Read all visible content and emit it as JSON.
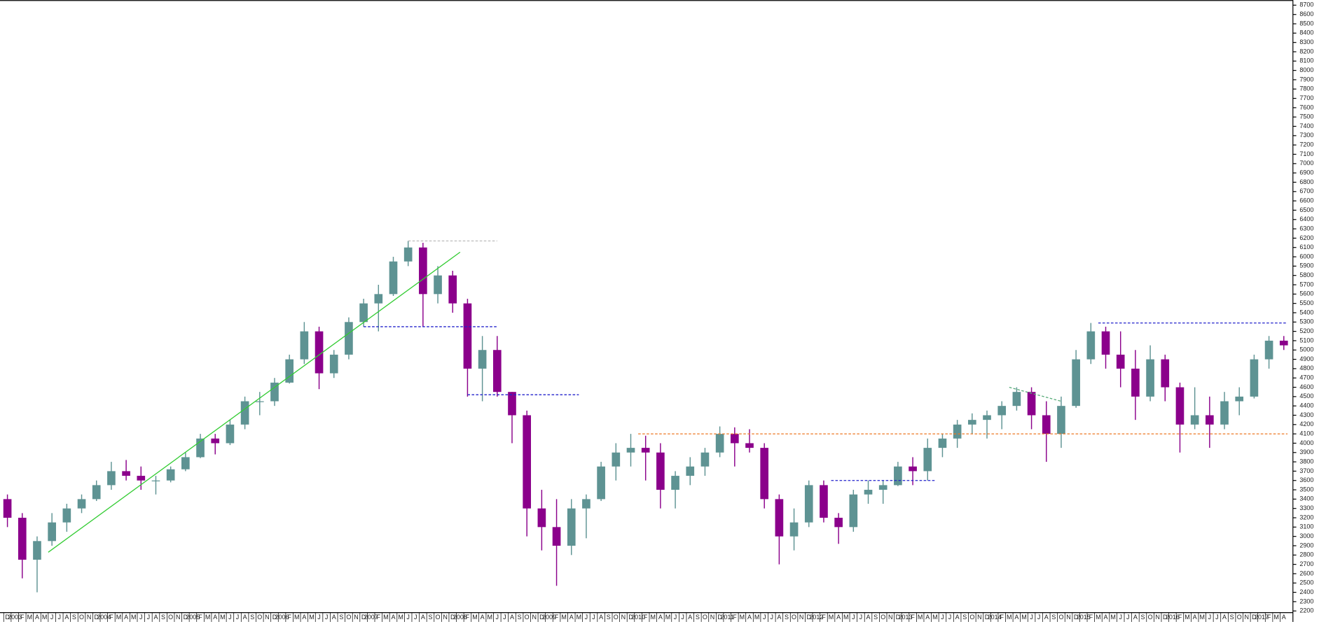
{
  "chart_data": {
    "type": "candlestick",
    "up_color": "#5e9393",
    "down_color": "#8b008b",
    "xlim": [
      -1,
      173
    ],
    "ylim": [
      2200,
      8700
    ],
    "yticks": [
      2200,
      2300,
      2400,
      2500,
      2600,
      2700,
      2800,
      2900,
      3000,
      3100,
      3200,
      3300,
      3400,
      3500,
      3600,
      3700,
      3800,
      3900,
      4000,
      4100,
      4200,
      4300,
      4400,
      4500,
      4600,
      4700,
      4800,
      4900,
      5000,
      5100,
      5200,
      5300,
      5400,
      5500,
      5600,
      5700,
      5800,
      5900,
      6000,
      6100,
      6200,
      6300,
      6400,
      6500,
      6600,
      6700,
      6800,
      6900,
      7000,
      7100,
      7200,
      7300,
      7400,
      7500,
      7600,
      7700,
      7800,
      7900,
      8000,
      8100,
      8200,
      8300,
      8400,
      8500,
      8600,
      8700
    ],
    "categories": [
      "D",
      "2003",
      "F",
      "M",
      "A",
      "M",
      "J",
      "J",
      "A",
      "S",
      "O",
      "N",
      "D",
      "2004",
      "F",
      "M",
      "A",
      "M",
      "J",
      "J",
      "A",
      "S",
      "O",
      "N",
      "D",
      "2005",
      "F",
      "M",
      "A",
      "M",
      "J",
      "J",
      "A",
      "S",
      "O",
      "N",
      "D",
      "2006",
      "F",
      "M",
      "A",
      "M",
      "J",
      "J",
      "A",
      "S",
      "O",
      "N",
      "D",
      "2007",
      "F",
      "M",
      "A",
      "M",
      "J",
      "J",
      "A",
      "S",
      "O",
      "N",
      "D",
      "2008",
      "F",
      "M",
      "A",
      "M",
      "J",
      "J",
      "A",
      "S",
      "O",
      "N",
      "D",
      "2009",
      "F",
      "M",
      "A",
      "M",
      "J",
      "J",
      "A",
      "S",
      "O",
      "N",
      "D",
      "2010",
      "F",
      "M",
      "A",
      "M",
      "J",
      "J",
      "A",
      "S",
      "O",
      "N",
      "D",
      "2011",
      "F",
      "M",
      "A",
      "M",
      "J",
      "J",
      "A",
      "S",
      "O",
      "N",
      "D",
      "2012",
      "F",
      "M",
      "A",
      "M",
      "J",
      "J",
      "A",
      "S",
      "O",
      "N",
      "D",
      "2013",
      "F",
      "M",
      "A",
      "M",
      "J",
      "J",
      "A",
      "S",
      "O",
      "N",
      "D",
      "2014",
      "F",
      "M",
      "A",
      "M",
      "J",
      "J",
      "A",
      "S",
      "O",
      "N",
      "D",
      "2015",
      "F",
      "M",
      "A",
      "M",
      "J",
      "J",
      "A",
      "S",
      "O",
      "N",
      "D",
      "2016",
      "F",
      "M",
      "A",
      "M",
      "J",
      "J",
      "A",
      "S",
      "O",
      "N",
      "D",
      "2017",
      "F",
      "M",
      "A"
    ],
    "x": [
      0,
      2,
      4,
      6,
      8,
      10,
      12,
      14,
      16,
      18,
      20,
      22,
      24,
      26,
      28,
      30,
      32,
      34,
      36,
      38,
      40,
      42,
      44,
      46,
      48,
      50,
      52,
      54,
      56,
      58,
      60,
      62,
      64,
      66,
      68,
      70,
      72,
      74,
      76,
      78,
      80,
      82,
      84,
      86,
      88,
      90,
      92,
      94,
      96,
      98,
      100,
      102,
      104,
      106,
      108,
      110,
      112,
      114,
      116,
      118,
      120,
      122,
      124,
      126,
      128,
      130,
      132,
      134,
      136,
      138,
      140,
      142,
      144,
      146,
      148,
      150,
      152,
      154,
      156,
      158,
      160,
      162,
      164,
      166,
      168,
      170,
      172
    ],
    "ohlc": [
      [
        3400,
        3450,
        3100,
        3200
      ],
      [
        3200,
        3250,
        2550,
        2750
      ],
      [
        2750,
        3000,
        2400,
        2950
      ],
      [
        2950,
        3250,
        2900,
        3150
      ],
      [
        3150,
        3350,
        3050,
        3300
      ],
      [
        3300,
        3450,
        3250,
        3400
      ],
      [
        3400,
        3600,
        3380,
        3550
      ],
      [
        3550,
        3800,
        3500,
        3700
      ],
      [
        3700,
        3820,
        3600,
        3650
      ],
      [
        3650,
        3750,
        3500,
        3600
      ],
      [
        3600,
        3650,
        3450,
        3600
      ],
      [
        3600,
        3750,
        3580,
        3720
      ],
      [
        3720,
        3900,
        3700,
        3850
      ],
      [
        3850,
        4100,
        3840,
        4050
      ],
      [
        4050,
        4100,
        3880,
        4000
      ],
      [
        4000,
        4250,
        3980,
        4200
      ],
      [
        4200,
        4500,
        4150,
        4450
      ],
      [
        4450,
        4550,
        4300,
        4450
      ],
      [
        4450,
        4700,
        4400,
        4650
      ],
      [
        4650,
        4950,
        4640,
        4900
      ],
      [
        4900,
        5300,
        4850,
        5200
      ],
      [
        5200,
        5250,
        4580,
        4750
      ],
      [
        4750,
        5000,
        4700,
        4950
      ],
      [
        4950,
        5350,
        4900,
        5300
      ],
      [
        5300,
        5550,
        5250,
        5500
      ],
      [
        5500,
        5700,
        5200,
        5600
      ],
      [
        5600,
        6000,
        5580,
        5950
      ],
      [
        5950,
        6170,
        5900,
        6100
      ],
      [
        6100,
        6150,
        5250,
        5600
      ],
      [
        5600,
        5900,
        5500,
        5800
      ],
      [
        5800,
        5850,
        5400,
        5500
      ],
      [
        5500,
        5550,
        4500,
        4800
      ],
      [
        4800,
        5150,
        4450,
        5000
      ],
      [
        5000,
        5150,
        4500,
        4550
      ],
      [
        4550,
        4550,
        4000,
        4300
      ],
      [
        4300,
        4350,
        3000,
        3300
      ],
      [
        3300,
        3500,
        2850,
        3100
      ],
      [
        3100,
        3400,
        2470,
        2900
      ],
      [
        2900,
        3400,
        2800,
        3300
      ],
      [
        3300,
        3450,
        2980,
        3400
      ],
      [
        3400,
        3800,
        3380,
        3750
      ],
      [
        3750,
        4000,
        3600,
        3900
      ],
      [
        3900,
        4100,
        3750,
        3950
      ],
      [
        3950,
        4080,
        3600,
        3900
      ],
      [
        3900,
        4000,
        3300,
        3500
      ],
      [
        3500,
        3700,
        3300,
        3650
      ],
      [
        3650,
        3850,
        3550,
        3750
      ],
      [
        3750,
        3950,
        3650,
        3900
      ],
      [
        3900,
        4180,
        3850,
        4100
      ],
      [
        4100,
        4170,
        3750,
        4000
      ],
      [
        4000,
        4150,
        3900,
        3950
      ],
      [
        3950,
        4000,
        3300,
        3400
      ],
      [
        3400,
        3450,
        2700,
        3000
      ],
      [
        3000,
        3300,
        2850,
        3150
      ],
      [
        3150,
        3600,
        3100,
        3550
      ],
      [
        3550,
        3600,
        3150,
        3200
      ],
      [
        3200,
        3250,
        2920,
        3100
      ],
      [
        3100,
        3500,
        3050,
        3450
      ],
      [
        3450,
        3600,
        3350,
        3500
      ],
      [
        3500,
        3600,
        3350,
        3550
      ],
      [
        3550,
        3800,
        3540,
        3750
      ],
      [
        3750,
        3850,
        3550,
        3700
      ],
      [
        3700,
        4050,
        3600,
        3950
      ],
      [
        3950,
        4100,
        3850,
        4050
      ],
      [
        4050,
        4250,
        3950,
        4200
      ],
      [
        4200,
        4320,
        4100,
        4250
      ],
      [
        4250,
        4350,
        4050,
        4300
      ],
      [
        4300,
        4450,
        4150,
        4400
      ],
      [
        4400,
        4600,
        4350,
        4550
      ],
      [
        4550,
        4600,
        4150,
        4300
      ],
      [
        4300,
        4450,
        3800,
        4100
      ],
      [
        4100,
        4500,
        3950,
        4400
      ],
      [
        4400,
        5000,
        4380,
        4900
      ],
      [
        4900,
        5290,
        4850,
        5200
      ],
      [
        5200,
        5250,
        4800,
        4950
      ],
      [
        4950,
        5200,
        4600,
        4800
      ],
      [
        4800,
        5000,
        4250,
        4500
      ],
      [
        4500,
        5050,
        4450,
        4900
      ],
      [
        4900,
        4950,
        4450,
        4600
      ],
      [
        4600,
        4650,
        3900,
        4200
      ],
      [
        4200,
        4600,
        4150,
        4300
      ],
      [
        4300,
        4500,
        3950,
        4200
      ],
      [
        4200,
        4550,
        4150,
        4450
      ],
      [
        4450,
        4600,
        4300,
        4500
      ],
      [
        4500,
        4950,
        4480,
        4900
      ],
      [
        4900,
        5150,
        4800,
        5100
      ],
      [
        5100,
        5150,
        5000,
        5050
      ]
    ],
    "lines": [
      {
        "x": [
          5.5,
          61
        ],
        "y": [
          2830,
          6050
        ],
        "color": "#33cc33",
        "dash": false
      },
      {
        "x": [
          54,
          66
        ],
        "y": [
          6170,
          6170
        ],
        "color": "#bbbbbb",
        "dash": true
      },
      {
        "x": [
          48,
          66
        ],
        "y": [
          5250,
          5250
        ],
        "color": "#2222cc",
        "dash": true
      },
      {
        "x": [
          62,
          77
        ],
        "y": [
          4520,
          4520
        ],
        "color": "#2222cc",
        "dash": true
      },
      {
        "x": [
          85,
          172.5
        ],
        "y": [
          4100,
          4100
        ],
        "color": "#ee7722",
        "dash": true
      },
      {
        "x": [
          111,
          125
        ],
        "y": [
          3600,
          3600
        ],
        "color": "#2222cc",
        "dash": true
      },
      {
        "x": [
          147,
          172.5
        ],
        "y": [
          5290,
          5290
        ],
        "color": "#2222cc",
        "dash": true
      },
      {
        "x": [
          135,
          142
        ],
        "y": [
          4600,
          4450
        ],
        "color": "#55aa77",
        "dash": true
      }
    ]
  }
}
